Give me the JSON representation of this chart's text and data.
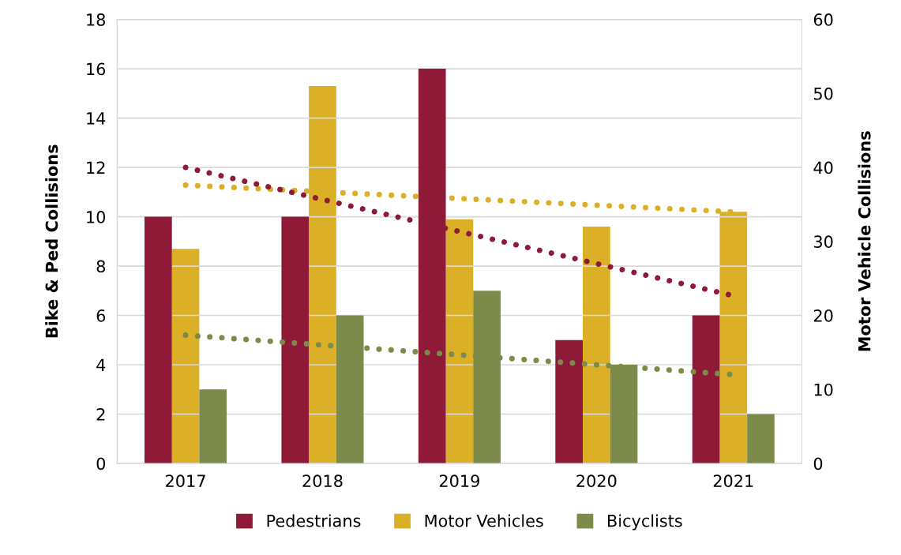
{
  "chart_data": {
    "type": "bar",
    "categories": [
      "2017",
      "2018",
      "2019",
      "2020",
      "2021"
    ],
    "ylabel": "Bike & Ped Collisions",
    "y2label": "Motor Vehicle Collisions",
    "ylim": [
      0,
      18
    ],
    "yticks": [
      0,
      2,
      4,
      6,
      8,
      10,
      12,
      14,
      16,
      18
    ],
    "y2lim": [
      0,
      60
    ],
    "y2ticks": [
      0,
      10,
      20,
      30,
      40,
      50,
      60
    ],
    "grid": "y",
    "legend": "bottom",
    "series": [
      {
        "name": "Pedestrians",
        "color": "#8e1a38",
        "values": [
          10,
          10,
          16,
          5,
          6
        ]
      },
      {
        "name": "Motor Vehicles",
        "color": "#dbb027",
        "values": [
          29,
          51,
          33,
          32,
          34
        ],
        "axis": "y2"
      },
      {
        "name": "Bicyclists",
        "color": "#7c8b4a",
        "values": [
          3,
          6,
          7,
          4,
          2
        ]
      },
      {
        "type": "line",
        "color": "#8e1a38",
        "values": [
          12.0,
          10.7,
          9.4,
          8.1,
          6.8
        ],
        "line_style": "dotted",
        "marker": "none"
      },
      {
        "type": "line",
        "color": "#dbb027",
        "values": [
          37.6,
          36.7,
          35.8,
          34.9,
          34.0
        ],
        "line_style": "dotted",
        "marker": "none",
        "axis": "y2"
      },
      {
        "type": "line",
        "color": "#7c8b4a",
        "values": [
          5.2,
          4.8,
          4.4,
          4.0,
          3.6
        ],
        "line_style": "dotted",
        "marker": "none"
      }
    ]
  }
}
